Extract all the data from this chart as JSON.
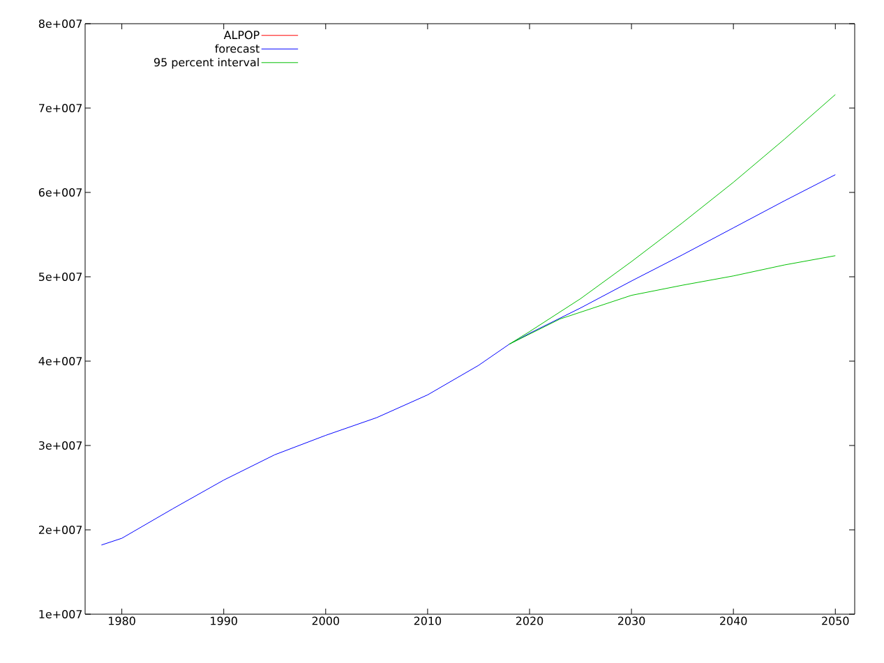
{
  "chart_data": {
    "type": "line",
    "xlim": [
      1976.4,
      2051.9
    ],
    "ylim": [
      10000000,
      80000000
    ],
    "xticks": [
      1980,
      1990,
      2000,
      2010,
      2020,
      2030,
      2040,
      2050
    ],
    "yticks": [
      {
        "value": 10000000,
        "label": "1e+007"
      },
      {
        "value": 20000000,
        "label": "2e+007"
      },
      {
        "value": 30000000,
        "label": "3e+007"
      },
      {
        "value": 40000000,
        "label": "4e+007"
      },
      {
        "value": 50000000,
        "label": "5e+007"
      },
      {
        "value": 60000000,
        "label": "6e+007"
      },
      {
        "value": 70000000,
        "label": "7e+007"
      },
      {
        "value": 80000000,
        "label": "8e+007"
      }
    ],
    "legend": "top left",
    "series": [
      {
        "name": "ALPOP",
        "color": "#ff0000"
      },
      {
        "name": "forecast",
        "color": "#0000ff",
        "x": [
          1978,
          1980,
          1985,
          1990,
          1995,
          2000,
          2005,
          2010,
          2015,
          2018,
          2020,
          2025,
          2030,
          2035,
          2040,
          2045,
          2050
        ],
        "values": [
          18200000,
          19000000,
          22500000,
          25900000,
          28900000,
          31200000,
          33300000,
          36000000,
          39500000,
          42000000,
          43300000,
          46300000,
          49500000,
          52600000,
          55800000,
          59000000,
          62100000
        ]
      },
      {
        "name": "95 percent interval",
        "color": "#00c000",
        "x": [
          2018,
          2020,
          2025,
          2030,
          2035,
          2040,
          2045,
          2050
        ],
        "values": [
          42000000,
          43500000,
          47400000,
          51800000,
          56400000,
          61200000,
          66300000,
          71600000
        ]
      },
      {
        "color": "#00c000",
        "x": [
          2018,
          2020,
          2023,
          2025,
          2030,
          2035,
          2040,
          2045,
          2050
        ],
        "values": [
          42000000,
          43200000,
          45000000,
          45800000,
          47800000,
          49000000,
          50100000,
          51400000,
          52500000
        ]
      }
    ]
  }
}
